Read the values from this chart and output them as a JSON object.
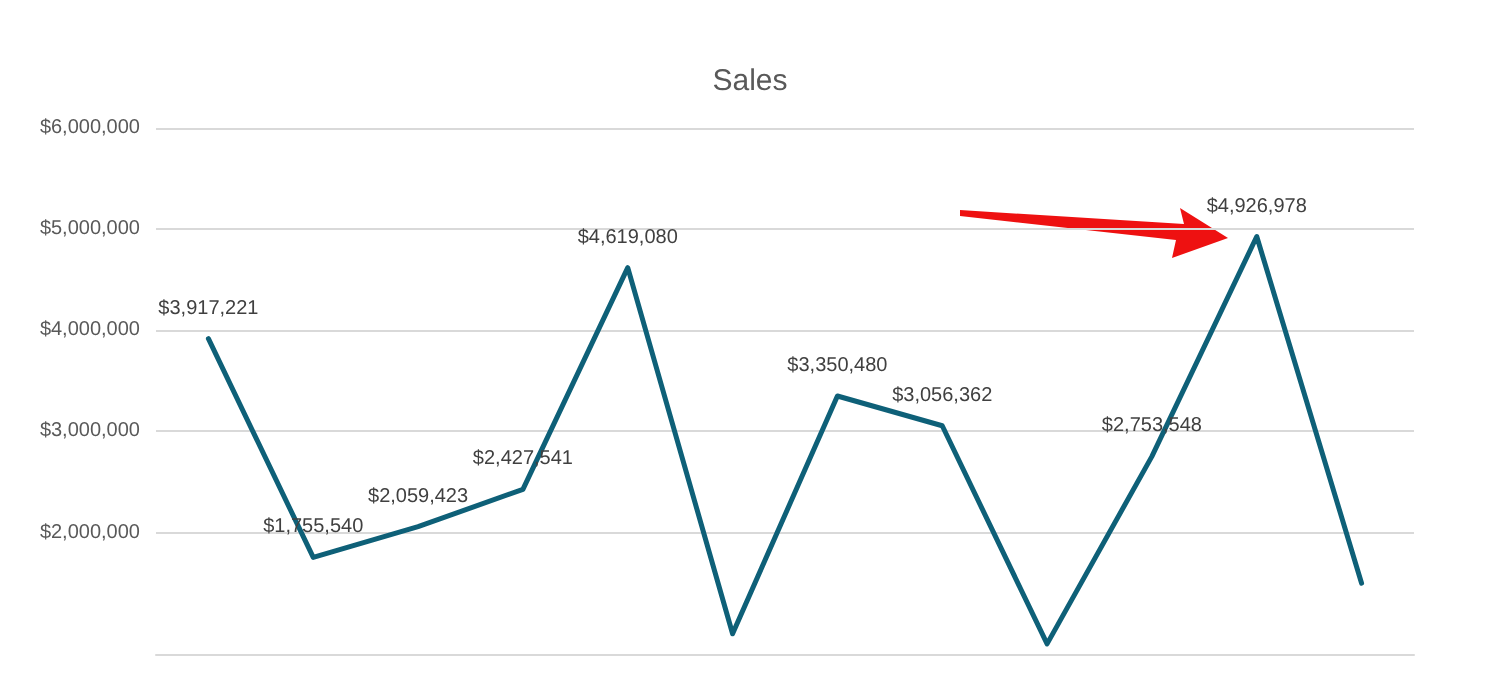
{
  "chart_data": {
    "type": "line",
    "title": "Sales",
    "categories": [
      null,
      null,
      null,
      null,
      null,
      null,
      null,
      null,
      null,
      null,
      null,
      null
    ],
    "series": [
      {
        "color": "#0e6078",
        "values": [
          3917221,
          1755540,
          2059423,
          2427541,
          4619080,
          1000000,
          3350480,
          3056362,
          900000,
          2753548,
          4926978,
          1500000
        ],
        "value_labels": [
          "$3,917,221",
          "$1,755,540",
          "$2,059,423",
          "$2,427,541",
          "$4,619,080",
          null,
          "$3,350,480",
          "$3,056,362",
          null,
          "$2,753,548",
          "$4,926,978",
          null
        ]
      }
    ],
    "ylim": [
      800000,
      6000000
    ],
    "yticks": [
      {
        "value": 2000000,
        "label": "$2,000,000"
      },
      {
        "value": 3000000,
        "label": "$3,000,000"
      },
      {
        "value": 4000000,
        "label": "$4,000,000"
      },
      {
        "value": 5000000,
        "label": "$5,000,000"
      },
      {
        "value": 6000000,
        "label": "$6,000,000"
      }
    ],
    "grid": "y",
    "marker": "none",
    "line_style": "solid"
  }
}
